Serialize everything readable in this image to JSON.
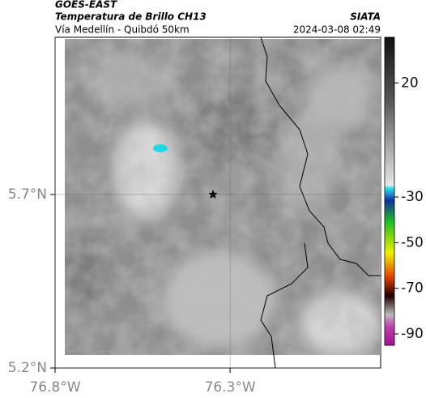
{
  "header": {
    "title": "GOES-EAST",
    "subtitle": "Temperatura de Brillo CH13",
    "source": "SIATA",
    "location": "Vía Medellín - Quibdó 50km",
    "datetime": "2024-03-08 02:49"
  },
  "map": {
    "latlim": [
      5.2,
      6.153
    ],
    "lonlim": [
      -76.8,
      -75.87
    ],
    "lat_ticks": [
      {
        "value": 5.7,
        "label": "5.7°N"
      },
      {
        "value": 5.2,
        "label": "5.2°N"
      }
    ],
    "lon_ticks": [
      {
        "value": -76.8,
        "label": "76.8°W"
      },
      {
        "value": -76.3,
        "label": "76.3°W"
      }
    ],
    "grid": true
  },
  "colorbar": {
    "lim": [
      40,
      -95
    ],
    "ticks": [
      20,
      -30,
      -50,
      -70,
      -90
    ]
  }
}
